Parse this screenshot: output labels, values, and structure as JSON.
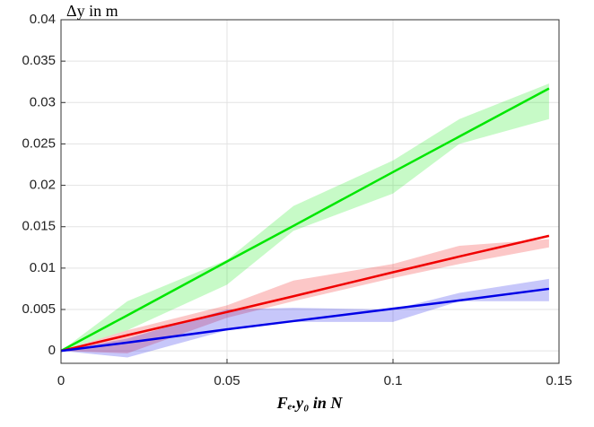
{
  "chart_data": {
    "type": "line",
    "y_label": "Δy in m",
    "x_label": "Fₑ.y₀ in N",
    "x": [
      0,
      0.02,
      0.05,
      0.07,
      0.1,
      0.12,
      0.147
    ],
    "series": [
      {
        "color": "#00e600",
        "values": [
          0,
          0.0043,
          0.0108,
          0.0151,
          0.0216,
          0.0259,
          0.0317
        ],
        "upper": [
          0,
          0.006,
          0.011,
          0.0175,
          0.023,
          0.028,
          0.0323
        ],
        "lower": [
          0,
          0.0025,
          0.008,
          0.0145,
          0.019,
          0.025,
          0.028
        ]
      },
      {
        "color": "#f00000",
        "values": [
          0,
          0.0019,
          0.0047,
          0.0066,
          0.0095,
          0.0114,
          0.0139
        ],
        "upper": [
          0,
          0.0025,
          0.0055,
          0.0085,
          0.0105,
          0.0127,
          0.0135
        ],
        "lower": [
          0,
          -0.0003,
          0.004,
          0.006,
          0.0088,
          0.0105,
          0.0125
        ]
      },
      {
        "color": "#0000e6",
        "values": [
          0,
          0.001,
          0.0026,
          0.0036,
          0.0051,
          0.0061,
          0.0075
        ],
        "upper": [
          0,
          0.0015,
          0.005,
          0.0052,
          0.005,
          0.007,
          0.0087
        ],
        "lower": [
          0,
          -0.0008,
          0.0025,
          0.0035,
          0.0035,
          0.006,
          0.006
        ]
      }
    ],
    "xlim": [
      0,
      0.15
    ],
    "ylim": [
      -0.0015,
      0.04
    ],
    "xticks": [
      0,
      0.05,
      0.1,
      0.15
    ],
    "yticks": [
      0,
      0.005,
      0.01,
      0.015,
      0.02,
      0.025,
      0.03,
      0.035,
      0.04
    ],
    "grid": true
  }
}
